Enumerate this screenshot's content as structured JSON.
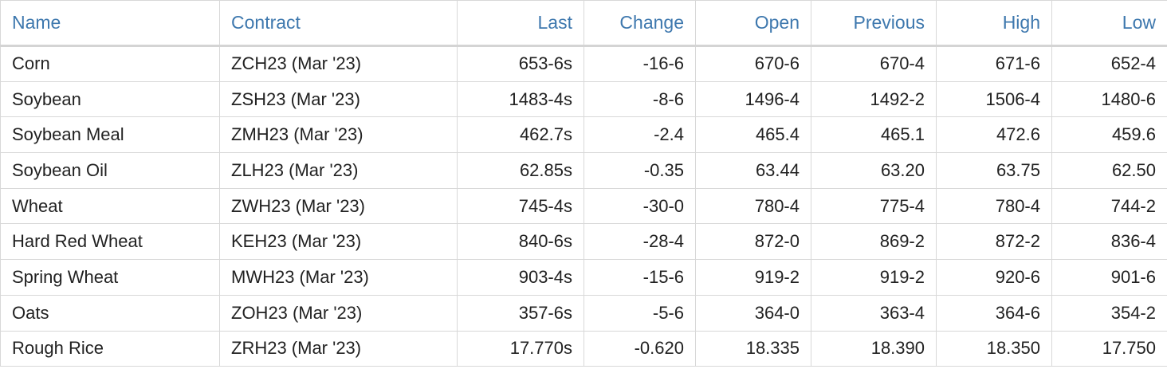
{
  "colors": {
    "link": "#3e78ae",
    "negative": "#e21b1b",
    "text": "#222222",
    "border": "#d8d8d8"
  },
  "table": {
    "headers": {
      "name": "Name",
      "contract": "Contract",
      "last": "Last",
      "change": "Change",
      "open": "Open",
      "previous": "Previous",
      "high": "High",
      "low": "Low"
    },
    "rows": [
      {
        "name": "Corn",
        "contract": "ZCH23 (Mar '23)",
        "last": "653-6s",
        "change": "-16-6",
        "open": "670-6",
        "previous": "670-4",
        "high": "671-6",
        "low": "652-4"
      },
      {
        "name": "Soybean",
        "contract": "ZSH23 (Mar '23)",
        "last": "1483-4s",
        "change": "-8-6",
        "open": "1496-4",
        "previous": "1492-2",
        "high": "1506-4",
        "low": "1480-6"
      },
      {
        "name": "Soybean Meal",
        "contract": "ZMH23 (Mar '23)",
        "last": "462.7s",
        "change": "-2.4",
        "open": "465.4",
        "previous": "465.1",
        "high": "472.6",
        "low": "459.6"
      },
      {
        "name": "Soybean Oil",
        "contract": "ZLH23 (Mar '23)",
        "last": "62.85s",
        "change": "-0.35",
        "open": "63.44",
        "previous": "63.20",
        "high": "63.75",
        "low": "62.50"
      },
      {
        "name": "Wheat",
        "contract": "ZWH23 (Mar '23)",
        "last": "745-4s",
        "change": "-30-0",
        "open": "780-4",
        "previous": "775-4",
        "high": "780-4",
        "low": "744-2"
      },
      {
        "name": "Hard Red Wheat",
        "contract": "KEH23 (Mar '23)",
        "last": "840-6s",
        "change": "-28-4",
        "open": "872-0",
        "previous": "869-2",
        "high": "872-2",
        "low": "836-4"
      },
      {
        "name": "Spring Wheat",
        "contract": "MWH23 (Mar '23)",
        "last": "903-4s",
        "change": "-15-6",
        "open": "919-2",
        "previous": "919-2",
        "high": "920-6",
        "low": "901-6"
      },
      {
        "name": "Oats",
        "contract": "ZOH23 (Mar '23)",
        "last": "357-6s",
        "change": "-5-6",
        "open": "364-0",
        "previous": "363-4",
        "high": "364-6",
        "low": "354-2"
      },
      {
        "name": "Rough Rice",
        "contract": "ZRH23 (Mar '23)",
        "last": "17.770s",
        "change": "-0.620",
        "open": "18.335",
        "previous": "18.390",
        "high": "18.350",
        "low": "17.750"
      }
    ]
  }
}
